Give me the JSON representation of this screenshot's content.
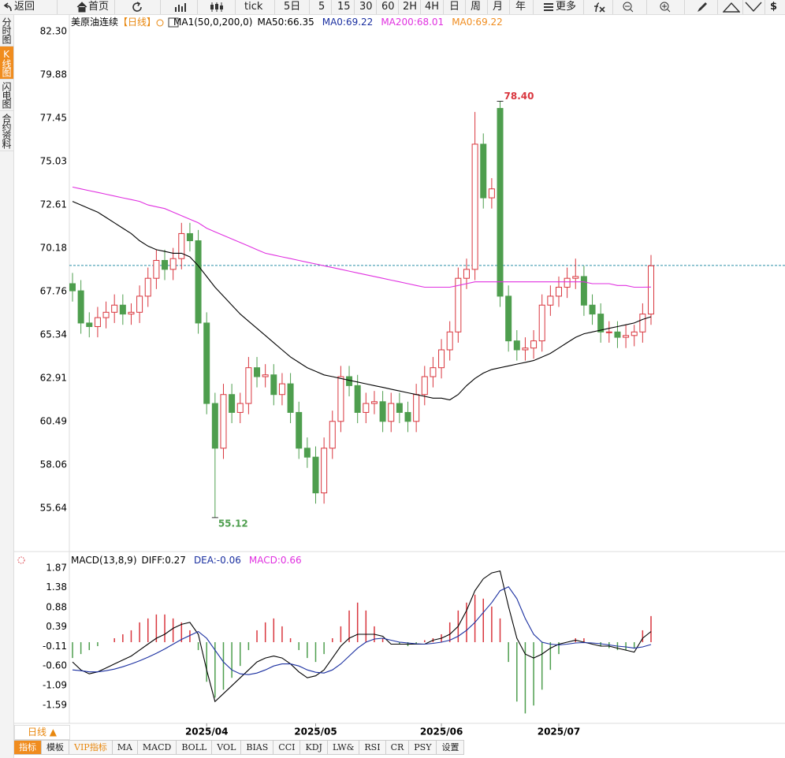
{
  "toolbar": {
    "buttons": [
      "返回",
      "首页",
      "tick",
      "5日",
      "5",
      "15",
      "30",
      "60",
      "2H",
      "4H",
      "日",
      "周",
      "月",
      "年",
      "更多",
      "$"
    ]
  },
  "side_tabs": [
    "分时图",
    "K线图",
    "闪电图",
    "合约资料"
  ],
  "chart_data": [
    {
      "type": "candlestick",
      "title": "美原油连续",
      "period": "【日线】",
      "legend": [
        "MA1(50,0,200,0)",
        "MA50:66.35",
        "MA0:69.22",
        "MA200:68.01",
        "MA0:69.22"
      ],
      "categories": [
        null,
        null,
        null,
        null,
        null,
        null,
        null,
        null,
        null,
        null,
        null,
        null,
        null,
        null,
        null,
        null,
        "2025/04",
        null,
        null,
        null,
        null,
        null,
        null,
        null,
        null,
        null,
        null,
        null,
        null,
        "2025/05",
        null,
        null,
        null,
        null,
        null,
        null,
        null,
        null,
        null,
        null,
        null,
        null,
        null,
        null,
        "2025/06",
        null,
        null,
        null,
        null,
        null,
        null,
        null,
        null,
        null,
        null,
        null,
        null,
        null,
        "2025/07",
        null,
        null,
        null,
        null,
        null,
        null,
        null,
        null,
        null,
        null,
        null
      ],
      "candles": {
        "open": [
          68.2,
          67.8,
          66.0,
          65.8,
          66.3,
          66.6,
          67.0,
          66.5,
          66.6,
          67.5,
          68.5,
          69.5,
          69.0,
          69.6,
          71.0,
          70.6,
          66.0,
          61.5,
          59.0,
          62.0,
          61.0,
          61.5,
          63.5,
          63.0,
          63.1,
          62.0,
          62.6,
          61.0,
          59.0,
          58.5,
          56.5,
          59.0,
          60.5,
          63.0,
          62.5,
          61.0,
          61.5,
          61.6,
          60.5,
          61.5,
          61.0,
          60.5,
          62.0,
          63.0,
          63.5,
          64.5,
          65.5,
          68.5,
          69.0,
          76.0,
          73.0,
          78.0,
          67.5,
          65.0,
          64.5,
          64.6,
          65.0,
          67.0,
          67.5,
          68.0,
          68.5,
          68.6,
          67.0,
          66.5,
          65.5,
          65.5,
          65.2,
          65.3,
          65.5,
          66.5
        ],
        "high": [
          68.8,
          68.4,
          66.6,
          66.9,
          67.2,
          67.6,
          67.6,
          67.1,
          68.1,
          69.1,
          70.1,
          70.1,
          70.2,
          71.6,
          71.6,
          71.2,
          66.6,
          62.1,
          62.6,
          62.6,
          62.1,
          64.1,
          64.1,
          63.7,
          63.7,
          63.2,
          63.2,
          61.6,
          59.6,
          59.1,
          59.6,
          61.1,
          63.6,
          63.6,
          63.1,
          62.1,
          62.2,
          62.2,
          62.1,
          62.1,
          61.6,
          62.6,
          63.6,
          64.1,
          65.1,
          66.1,
          69.1,
          69.6,
          77.8,
          76.6,
          74.1,
          78.4,
          68.1,
          65.6,
          65.2,
          65.6,
          67.6,
          68.1,
          68.6,
          69.1,
          69.6,
          69.2,
          67.6,
          67.1,
          66.1,
          66.1,
          65.9,
          65.9,
          67.1,
          69.8
        ],
        "low": [
          67.2,
          65.4,
          65.2,
          65.2,
          65.7,
          66.0,
          65.9,
          65.9,
          66.0,
          66.9,
          67.9,
          68.4,
          68.4,
          69.0,
          70.0,
          65.4,
          60.9,
          55.12,
          58.4,
          60.4,
          60.4,
          60.9,
          62.4,
          62.4,
          61.4,
          61.4,
          60.4,
          58.4,
          57.9,
          55.9,
          55.9,
          58.4,
          59.9,
          61.9,
          60.4,
          60.4,
          60.9,
          59.9,
          59.9,
          60.4,
          59.9,
          59.9,
          61.4,
          62.4,
          62.9,
          63.9,
          64.9,
          67.9,
          68.4,
          72.4,
          72.4,
          66.9,
          64.4,
          63.9,
          63.9,
          64.0,
          64.4,
          66.4,
          66.9,
          67.4,
          67.9,
          66.4,
          65.9,
          64.9,
          64.9,
          64.6,
          64.6,
          64.7,
          64.9,
          65.9
        ],
        "close": [
          67.8,
          66.0,
          65.8,
          66.3,
          66.6,
          67.0,
          66.5,
          66.6,
          67.5,
          68.5,
          69.5,
          69.0,
          69.6,
          71.0,
          70.6,
          66.0,
          61.5,
          59.0,
          62.0,
          61.0,
          61.5,
          63.5,
          63.0,
          63.1,
          62.0,
          62.6,
          61.0,
          59.0,
          58.5,
          56.5,
          59.0,
          60.5,
          63.0,
          62.5,
          61.0,
          61.5,
          61.6,
          60.5,
          61.5,
          61.0,
          60.5,
          62.0,
          63.0,
          63.5,
          64.5,
          65.5,
          68.5,
          69.0,
          76.0,
          73.0,
          73.5,
          67.5,
          65.0,
          64.5,
          64.6,
          65.0,
          67.0,
          67.5,
          68.0,
          68.5,
          68.6,
          67.0,
          66.5,
          65.5,
          65.5,
          65.2,
          65.3,
          65.5,
          66.5,
          69.2
        ]
      },
      "up_color": "#d9363e",
      "down_color": "#4e9e4e",
      "series": [
        {
          "color": "#000000",
          "values": [
            72.8,
            72.6,
            72.4,
            72.2,
            71.9,
            71.6,
            71.3,
            71.0,
            70.6,
            70.3,
            70.1,
            70.0,
            69.9,
            69.9,
            69.7,
            69.2,
            68.6,
            68.0,
            67.5,
            67.0,
            66.5,
            66.1,
            65.7,
            65.3,
            64.9,
            64.5,
            64.1,
            63.8,
            63.5,
            63.3,
            63.1,
            63.0,
            62.9,
            62.8,
            62.7,
            62.6,
            62.5,
            62.4,
            62.3,
            62.2,
            62.1,
            62.0,
            61.9,
            61.8,
            61.8,
            61.7,
            62.0,
            62.5,
            62.9,
            63.2,
            63.4,
            63.5,
            63.6,
            63.7,
            63.8,
            63.9,
            64.1,
            64.3,
            64.6,
            64.9,
            65.2,
            65.4,
            65.5,
            65.6,
            65.7,
            65.8,
            65.9,
            66.0,
            66.2,
            66.35
          ]
        },
        {
          "color": "#e030e0",
          "values": [
            73.6,
            73.5,
            73.4,
            73.3,
            73.2,
            73.1,
            73.0,
            72.9,
            72.8,
            72.6,
            72.5,
            72.4,
            72.2,
            72.0,
            71.8,
            71.6,
            71.3,
            71.1,
            70.9,
            70.7,
            70.5,
            70.3,
            70.1,
            69.9,
            69.8,
            69.7,
            69.6,
            69.5,
            69.4,
            69.3,
            69.2,
            69.1,
            69.0,
            68.9,
            68.8,
            68.7,
            68.6,
            68.5,
            68.4,
            68.3,
            68.2,
            68.1,
            68.0,
            68.0,
            68.0,
            68.0,
            68.1,
            68.2,
            68.3,
            68.3,
            68.3,
            68.3,
            68.3,
            68.3,
            68.3,
            68.3,
            68.3,
            68.3,
            68.3,
            68.3,
            68.3,
            68.3,
            68.2,
            68.2,
            68.2,
            68.1,
            68.1,
            68.0,
            68.0,
            68.01
          ]
        }
      ],
      "last_price": 69.22,
      "high_label": "78.40",
      "low_label": "55.12",
      "ylim": [
        53.22,
        83.18
      ],
      "yticks": [
        {
          "value": 82.3,
          "label": "82.30"
        },
        79.88,
        77.45,
        75.03,
        72.61,
        70.18,
        67.76,
        65.34,
        62.91,
        60.49,
        58.06,
        55.64
      ]
    },
    {
      "type": "macd",
      "legend": [
        "MACD(13,8,9)",
        "DIFF:0.27",
        "DEA:-0.06",
        "MACD:0.66"
      ],
      "histogram": [
        -0.4,
        -0.3,
        -0.2,
        -0.1,
        0.0,
        0.1,
        0.2,
        0.3,
        0.5,
        0.6,
        0.7,
        0.7,
        0.6,
        0.5,
        0.3,
        -0.2,
        -1.0,
        -1.4,
        -1.2,
        -0.9,
        -0.6,
        -0.2,
        0.3,
        0.5,
        0.6,
        0.4,
        0.1,
        -0.2,
        -0.4,
        -0.5,
        -0.3,
        0.1,
        0.4,
        0.8,
        1.0,
        0.8,
        0.4,
        0.1,
        0.0,
        -0.05,
        -0.1,
        -0.05,
        0.05,
        0.1,
        0.2,
        0.5,
        0.8,
        1.0,
        1.2,
        1.1,
        0.9,
        0.6,
        -0.5,
        -1.5,
        -1.8,
        -1.6,
        -1.2,
        -0.7,
        -0.3,
        0.0,
        0.1,
        0.1,
        0.0,
        -0.1,
        -0.15,
        -0.2,
        -0.2,
        -0.15,
        0.3,
        0.66
      ],
      "diff": [
        -0.5,
        -0.7,
        -0.8,
        -0.75,
        -0.65,
        -0.55,
        -0.45,
        -0.35,
        -0.2,
        -0.05,
        0.1,
        0.2,
        0.35,
        0.45,
        0.5,
        0.2,
        -0.7,
        -1.5,
        -1.3,
        -1.1,
        -0.9,
        -0.7,
        -0.5,
        -0.4,
        -0.35,
        -0.4,
        -0.55,
        -0.75,
        -0.9,
        -0.85,
        -0.7,
        -0.4,
        -0.1,
        0.1,
        0.2,
        0.2,
        0.2,
        0.15,
        -0.05,
        -0.05,
        -0.05,
        -0.05,
        -0.05,
        0.05,
        0.1,
        0.2,
        0.4,
        0.8,
        1.3,
        1.6,
        1.75,
        1.8,
        0.9,
        0.1,
        -0.3,
        -0.4,
        -0.3,
        -0.15,
        -0.05,
        0.0,
        0.05,
        0.0,
        -0.05,
        -0.1,
        -0.1,
        -0.15,
        -0.2,
        -0.25,
        0.1,
        0.27
      ],
      "dea": [
        -0.7,
        -0.72,
        -0.75,
        -0.75,
        -0.72,
        -0.68,
        -0.62,
        -0.55,
        -0.47,
        -0.38,
        -0.28,
        -0.17,
        -0.05,
        0.07,
        0.17,
        0.27,
        0.1,
        -0.2,
        -0.5,
        -0.7,
        -0.8,
        -0.82,
        -0.78,
        -0.7,
        -0.6,
        -0.55,
        -0.55,
        -0.6,
        -0.7,
        -0.76,
        -0.78,
        -0.7,
        -0.55,
        -0.35,
        -0.15,
        0.0,
        0.08,
        0.1,
        0.05,
        0.0,
        -0.02,
        -0.04,
        -0.05,
        -0.03,
        0.0,
        0.05,
        0.15,
        0.3,
        0.5,
        0.75,
        1.0,
        1.3,
        1.4,
        1.1,
        0.6,
        0.2,
        0.0,
        -0.05,
        -0.07,
        -0.05,
        -0.02,
        -0.01,
        -0.02,
        -0.04,
        -0.07,
        -0.1,
        -0.12,
        -0.15,
        -0.12,
        -0.06
      ],
      "diff_color": "#000000",
      "dea_color": "#1a2fa0",
      "up_color": "#d9363e",
      "down_color": "#4e9e4e",
      "ylim": [
        -2.05,
        2.19
      ],
      "yticks": [
        1.87,
        1.38,
        0.88,
        0.39,
        -0.11,
        {
          "value": -0.6,
          "label": "-0.60"
        },
        -1.09,
        -1.59
      ]
    }
  ],
  "bottom_bar": {
    "period": "日线 ▲",
    "tabs": [
      "指标",
      "模板",
      "VIP指标",
      "MA",
      "MACD",
      "BOLL",
      "VOL",
      "BIAS",
      "CCI",
      "KDJ",
      "LW&",
      "RSI",
      "CR",
      "PSY",
      "设置"
    ]
  }
}
